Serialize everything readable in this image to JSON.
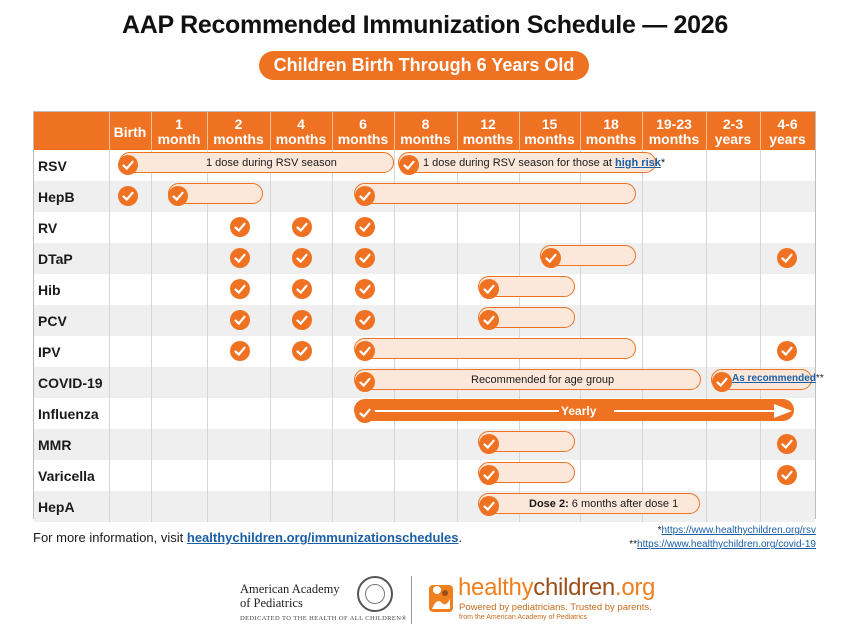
{
  "title": "AAP Recommended Immunization Schedule — 2026",
  "subtitle": "Children Birth Through 6 Years Old",
  "columns": [
    {
      "top": "Birth",
      "bottom": ""
    },
    {
      "top": "1",
      "bottom": "month"
    },
    {
      "top": "2",
      "bottom": "months"
    },
    {
      "top": "4",
      "bottom": "months"
    },
    {
      "top": "6",
      "bottom": "months"
    },
    {
      "top": "8",
      "bottom": "months"
    },
    {
      "top": "12",
      "bottom": "months"
    },
    {
      "top": "15",
      "bottom": "months"
    },
    {
      "top": "18",
      "bottom": "months"
    },
    {
      "top": "19-23",
      "bottom": "months"
    },
    {
      "top": "2-3",
      "bottom": "years"
    },
    {
      "top": "4-6",
      "bottom": "years"
    }
  ],
  "vaccines": [
    "RSV",
    "HepB",
    "RV",
    "DTaP",
    "Hib",
    "PCV",
    "IPV",
    "COVID-19",
    "Influenza",
    "MMR",
    "Varicella",
    "HepA"
  ],
  "bar_labels": {
    "rsv_1": "1 dose during RSV season",
    "rsv_2_prefix": "1 dose during RSV season for those at ",
    "rsv_2_link": "high risk",
    "rsv_2_suffix": "*",
    "covid_1": "Recommended for age group",
    "covid_2_link": "As recommended",
    "covid_2_suffix": "**",
    "flu": "Yearly",
    "hepa_bold": "Dose 2:",
    "hepa_rest": " 6 months after dose 1"
  },
  "footer": {
    "text": "For more information, visit ",
    "link": "healthychildren.org/immunizationschedules",
    "end": ".",
    "note1_mark": "*",
    "note1_link": "https://www.healthychildren.org/rsv",
    "note2_mark": "**",
    "note2_link": "https://www.healthychildren.org/covid-19"
  },
  "logos": {
    "aap_line1": "American Academy",
    "aap_line2": "of Pediatrics",
    "aap_tagline": "DEDICATED TO THE HEALTH OF ALL CHILDREN®",
    "hc_part1": "healthy",
    "hc_part2": "children",
    "hc_part3": ".org",
    "hc_tag1": "Powered by pediatricians. Trusted by parents.",
    "hc_tag2": "from the American Academy of Pediatrics"
  },
  "colors": {
    "accent": "#ef7223",
    "bar_fill": "#fce8da",
    "link": "#1a5ea8",
    "row_alt": "#efefef"
  }
}
